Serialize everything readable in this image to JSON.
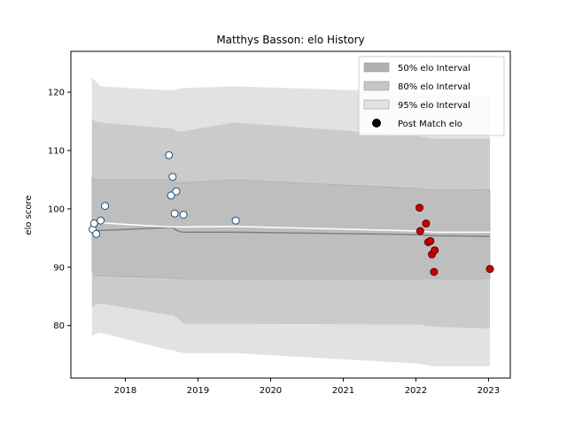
{
  "chart_data": {
    "type": "line",
    "title": "Matthys Basson: elo History",
    "xlabel": "",
    "ylabel": "elo score",
    "xlim": [
      2017.25,
      2023.3
    ],
    "ylim": [
      71,
      127
    ],
    "x_ticks": [
      2018,
      2019,
      2020,
      2021,
      2022,
      2023
    ],
    "x_tick_labels": [
      "2018",
      "2019",
      "2020",
      "2021",
      "2022",
      "2023"
    ],
    "y_ticks": [
      80,
      90,
      100,
      110,
      120
    ],
    "y_tick_labels": [
      "80",
      "90",
      "100",
      "110",
      "120"
    ],
    "grid": false,
    "legend_position": "top-right",
    "legend": [
      {
        "label": "50% elo Interval",
        "kind": "band",
        "color": "#b0b0b0"
      },
      {
        "label": "80% elo Interval",
        "kind": "band",
        "color": "#c6c6c6"
      },
      {
        "label": "95% elo Interval",
        "kind": "band",
        "color": "#e2e2e2"
      },
      {
        "label": "Post Match elo",
        "kind": "point",
        "color": "#000000"
      }
    ],
    "colors": {
      "band_95": "#e2e2e2",
      "band_80": "#cbcbcb",
      "band_50": "#bebebe",
      "band_edge": "#a8a8a8",
      "median_line": "#808080",
      "mean_line": "#ffffff",
      "early_point_edge": "#1f4e79",
      "recent_point_fill": "#cc0000",
      "recent_point_edge": "#5a0000"
    },
    "bands": {
      "x": [
        2017.54,
        2017.58,
        2017.66,
        2018.6,
        2018.65,
        2018.72,
        2018.8,
        2019.5,
        2022.0,
        2022.25,
        2023.02
      ],
      "lo95": [
        78.2,
        78.5,
        78.8,
        75.8,
        75.8,
        75.5,
        75.3,
        75.3,
        73.5,
        73.0,
        73.0
      ],
      "hi95": [
        122.5,
        122.0,
        121.0,
        120.3,
        120.3,
        120.5,
        120.7,
        121.0,
        120.0,
        119.5,
        119.5
      ],
      "lo80": [
        83.0,
        83.5,
        83.8,
        81.8,
        81.8,
        81.3,
        80.3,
        80.3,
        80.2,
        79.8,
        79.5
      ],
      "hi80": [
        115.5,
        115.0,
        114.8,
        113.8,
        113.8,
        113.3,
        113.3,
        114.8,
        112.5,
        112.0,
        112.0
      ],
      "lo50": [
        89.5,
        88.5,
        88.5,
        88.2,
        88.2,
        88.0,
        88.0,
        88.0,
        88.0,
        88.0,
        88.0
      ],
      "hi50": [
        105.5,
        105.0,
        105.0,
        105.0,
        105.2,
        104.5,
        104.5,
        105.0,
        103.5,
        103.2,
        103.3
      ],
      "median": [
        96.0,
        96.2,
        96.3,
        96.8,
        96.8,
        96.2,
        96.0,
        96.0,
        95.6,
        95.4,
        95.3
      ],
      "mean": [
        97.8,
        97.8,
        97.6,
        96.9,
        96.9,
        96.9,
        96.9,
        97.0,
        96.2,
        96.0,
        96.0
      ]
    },
    "series": [
      {
        "x": [
          2017.55,
          2017.57,
          2017.6,
          2017.66,
          2017.72,
          2018.6,
          2018.63,
          2018.65,
          2018.7,
          2018.68,
          2018.8,
          2019.52
        ],
        "values": [
          96.5,
          97.5,
          95.7,
          98.0,
          100.5,
          109.2,
          102.3,
          105.5,
          103.0,
          99.2,
          99.0,
          98.0
        ],
        "style": "early"
      },
      {
        "x": [
          2022.05,
          2022.06,
          2022.14,
          2022.17,
          2022.2,
          2022.22,
          2022.26,
          2022.25,
          2023.02
        ],
        "values": [
          100.2,
          96.2,
          97.5,
          94.3,
          94.5,
          92.2,
          92.9,
          89.2,
          89.7
        ],
        "style": "recent"
      }
    ]
  }
}
